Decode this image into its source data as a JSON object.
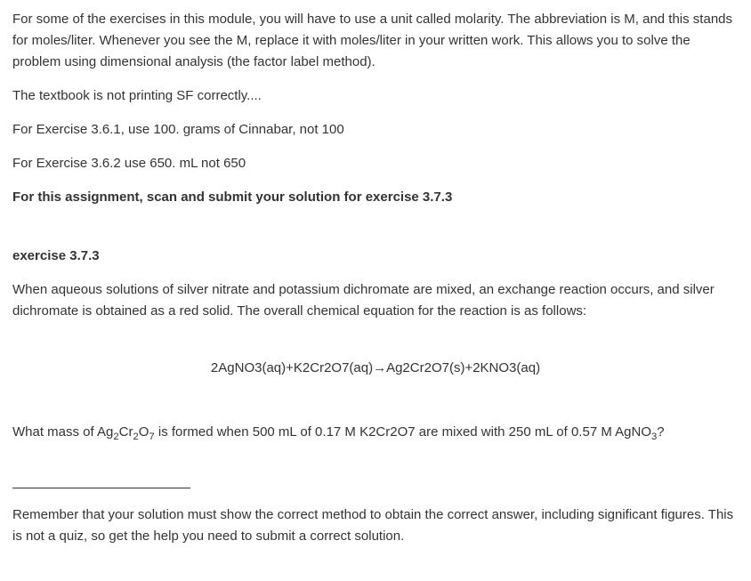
{
  "intro": {
    "p1": "For some of the exercises in this module, you will have to use a unit called molarity.  The abbreviation is M, and this stands for moles/liter.  Whenever you see the M, replace it with moles/liter in your written work.  This allows you to solve the problem using dimensional analysis (the factor label method).",
    "p2": "The textbook is not printing SF correctly....",
    "p3": "For Exercise 3.6.1, use 100. grams of Cinnabar, not 100",
    "p4": "For Exercise 3.6.2 use 650. mL not 650",
    "p5": "For this assignment, scan and submit your solution for exercise 3.7.3"
  },
  "exercise": {
    "title": "exercise 3.7.3",
    "prompt": "When aqueous solutions of silver nitrate and potassium dichromate are mixed, an exchange reaction occurs, and silver dichromate is obtained as a red solid. The overall chemical equation for the reaction is as follows:",
    "equation": "2AgNO3(aq)+K2Cr2O7(aq)→Ag2Cr2O7(s)+2KNO3(aq)",
    "q_pre": "What mass of Ag",
    "q_sub1": "2",
    "q_mid1": "Cr",
    "q_sub2": "2",
    "q_mid2": "O",
    "q_sub3": "7",
    "q_mid3": " is formed when 500 mL of 0.17 M ",
    "q_k2": "K2Cr2O7",
    "q_mid4": " are mixed with 250 mL of 0.57 M ",
    "q_ag": "AgNO",
    "q_sub4": "3",
    "q_end": "?"
  },
  "footnote": "Remember that your solution must show the correct method to obtain the correct answer, including significant figures. This is not a quiz, so get the help you need to submit a correct solution."
}
